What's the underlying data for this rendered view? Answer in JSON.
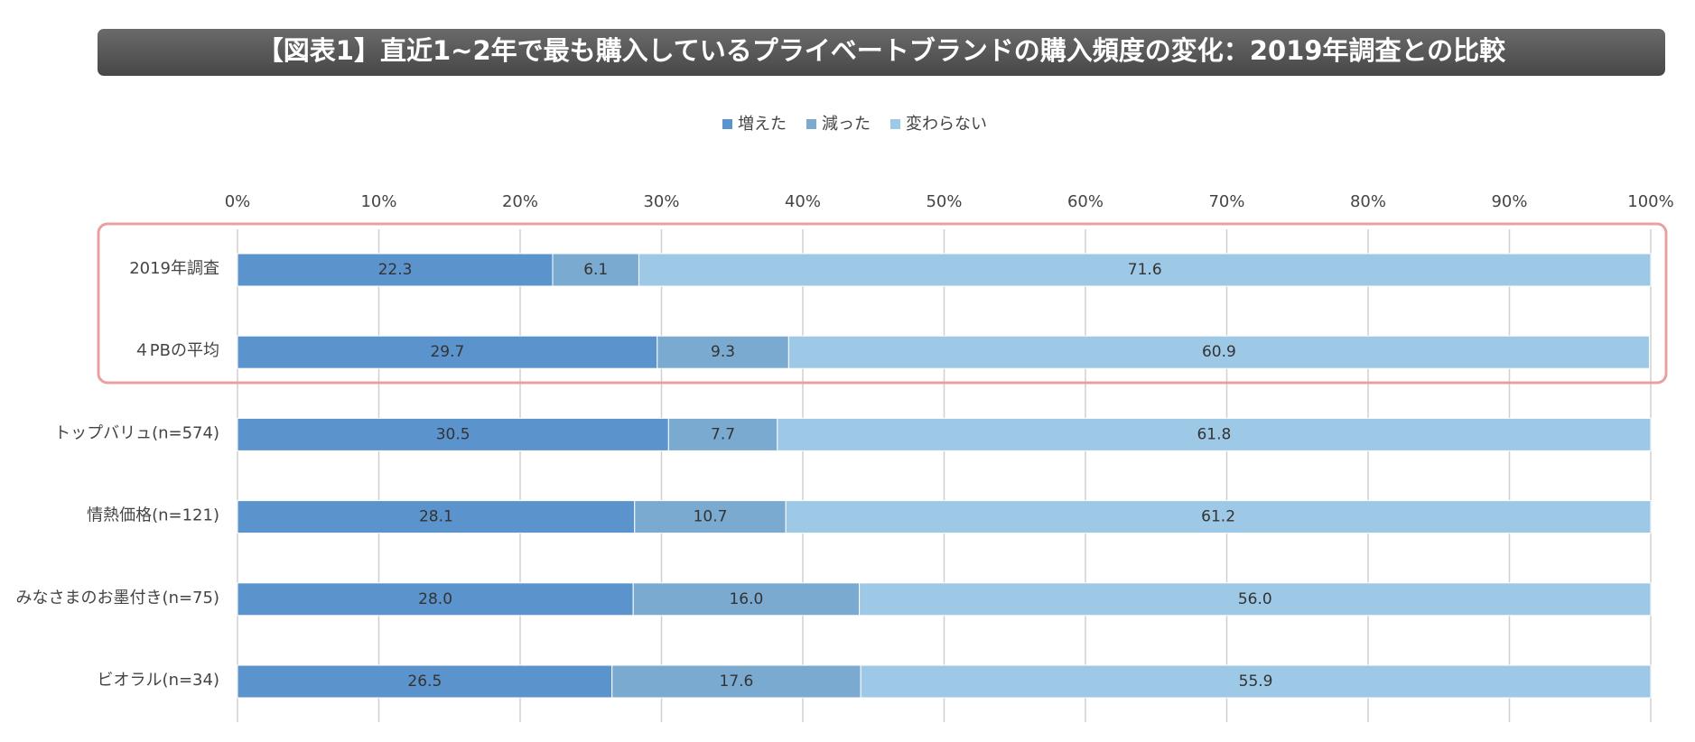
{
  "chart_data": {
    "type": "stacked_barh",
    "title": "【図表1】直近1~2年で最も購入しているプライベートブランドの購入頻度の変化：2019年調査との比較",
    "categories": [
      "2019年調査",
      "４PBの平均",
      "トップバリュ(n=574)",
      "情熱価格(n=121)",
      "みなさまのお墨付き(n=75)",
      "ビオラル(n=34)"
    ],
    "series": [
      {
        "name": "増えた",
        "color": "#5b93cc",
        "values": [
          22.3,
          29.7,
          30.5,
          28.1,
          28.0,
          26.5
        ],
        "value_labels": [
          "22.3",
          "29.7",
          "30.5",
          "28.1",
          "28.0",
          "26.5"
        ]
      },
      {
        "name": "減った",
        "color": "#7aaad0",
        "values": [
          6.1,
          9.3,
          7.7,
          10.7,
          16.0,
          17.6
        ],
        "value_labels": [
          "6.1",
          "9.3",
          "7.7",
          "10.7",
          "16.0",
          "17.6"
        ]
      },
      {
        "name": "変わらない",
        "color": "#9dc8e6",
        "values": [
          71.6,
          60.9,
          61.8,
          61.2,
          56.0,
          55.9
        ],
        "value_labels": [
          "71.6",
          "60.9",
          "61.8",
          "61.2",
          "56.0",
          "55.9"
        ]
      }
    ],
    "xlim": [
      0,
      100
    ],
    "xticks": [
      {
        "value": 0,
        "label": "0%"
      },
      {
        "value": 10,
        "label": "10%"
      },
      {
        "value": 20,
        "label": "20%"
      },
      {
        "value": 30,
        "label": "30%"
      },
      {
        "value": 40,
        "label": "40%"
      },
      {
        "value": 50,
        "label": "50%"
      },
      {
        "value": 60,
        "label": "60%"
      },
      {
        "value": 70,
        "label": "70%"
      },
      {
        "value": 80,
        "label": "80%"
      },
      {
        "value": 90,
        "label": "90%"
      },
      {
        "value": 100,
        "label": "100%"
      }
    ],
    "grid": true,
    "legend": "top"
  }
}
